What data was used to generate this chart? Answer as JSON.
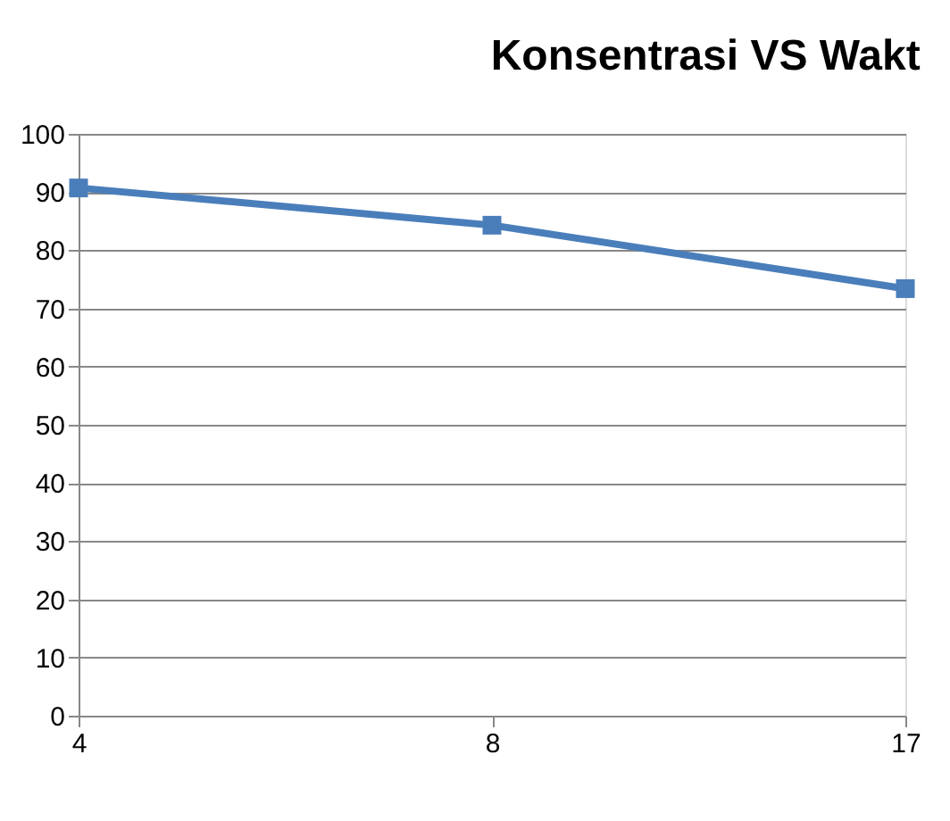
{
  "chart_data": {
    "type": "line",
    "title": "Konsentrasi VS Wakt",
    "categories": [
      "4",
      "8",
      "17"
    ],
    "series": [
      {
        "color": "#4a7ebb",
        "values": [
          90.7,
          84.3,
          73.4
        ]
      }
    ],
    "ylim": [
      0,
      100
    ],
    "yticks": [
      0,
      10,
      20,
      30,
      40,
      50,
      60,
      70,
      80,
      90,
      100
    ],
    "grid": "y",
    "marker": "square",
    "line_style": "solid"
  }
}
